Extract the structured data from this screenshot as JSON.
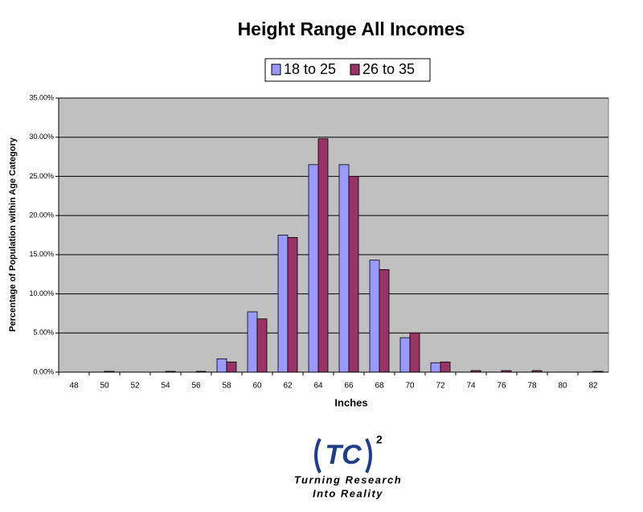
{
  "chart_data": {
    "type": "bar",
    "title": "Height Range All Incomes",
    "x_label": "Inches",
    "y_label": "Percentage of Population within Age Category",
    "categories": [
      "48",
      "50",
      "52",
      "54",
      "56",
      "58",
      "60",
      "62",
      "64",
      "66",
      "68",
      "70",
      "72",
      "74",
      "76",
      "78",
      "80",
      "82"
    ],
    "series": [
      {
        "name": "18 to 25",
        "color": "#9999ff",
        "values": [
          0,
          0,
          0,
          0,
          0,
          1.7,
          7.7,
          17.5,
          26.5,
          26.5,
          14.3,
          4.4,
          1.2,
          0,
          0,
          0,
          0,
          0
        ]
      },
      {
        "name": "26 to 35",
        "color": "#993366",
        "values": [
          0,
          0.1,
          0,
          0.1,
          0.1,
          1.3,
          6.8,
          17.2,
          29.8,
          25.0,
          13.1,
          5.0,
          1.3,
          0.2,
          0.2,
          0.2,
          0,
          0.1
        ]
      }
    ],
    "ylim": [
      0,
      35
    ],
    "yticks": [
      {
        "value": 0,
        "label": "0.00%"
      },
      {
        "value": 5,
        "label": "5.00%"
      },
      {
        "value": 10,
        "label": "10.00%"
      },
      {
        "value": 15,
        "label": "15.00%"
      },
      {
        "value": 20,
        "label": "20.00%"
      },
      {
        "value": 25,
        "label": "25.00%"
      },
      {
        "value": 30,
        "label": "30.00%"
      },
      {
        "value": 35,
        "label": "35.00%"
      }
    ],
    "grid": true,
    "legend": "top",
    "plot_background": "#c0c0c0"
  },
  "logo": {
    "mark": "TC",
    "superscript": "2",
    "tagline": [
      "Turning Research",
      "Into Reality"
    ]
  }
}
